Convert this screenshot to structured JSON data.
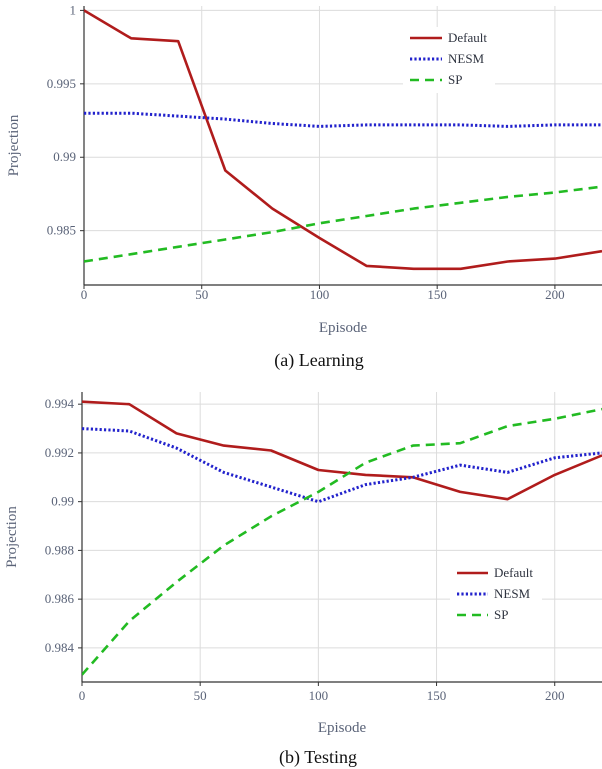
{
  "chart_data": [
    {
      "type": "line",
      "caption": "(a) Learning",
      "xlabel": "Episode",
      "ylabel": "Projection",
      "xlim": [
        0,
        220
      ],
      "ylim": [
        0.9813,
        1.0003
      ],
      "xticks": [
        0,
        50,
        100,
        150,
        200
      ],
      "yticks": [
        0.985,
        0.99,
        0.995,
        1
      ],
      "ytick_labels": [
        "0.985",
        "0.99",
        "0.995",
        "1"
      ],
      "grid": true,
      "legend_position": "top-right",
      "x": [
        0,
        20,
        40,
        60,
        80,
        100,
        120,
        140,
        160,
        180,
        200,
        220
      ],
      "series": [
        {
          "name": "Default",
          "color": "#b01c1c",
          "style": "solid",
          "values": [
            1.0,
            0.9981,
            0.9979,
            0.9891,
            0.9865,
            0.9845,
            0.9826,
            0.9824,
            0.9824,
            0.9829,
            0.9831,
            0.9836
          ]
        },
        {
          "name": "NESM",
          "color": "#2222cc",
          "style": "dotted",
          "values": [
            0.993,
            0.993,
            0.9928,
            0.9926,
            0.9923,
            0.9921,
            0.9922,
            0.9922,
            0.9922,
            0.9921,
            0.9922,
            0.9922
          ]
        },
        {
          "name": "SP",
          "color": "#22bb22",
          "style": "dashed",
          "values": [
            0.9829,
            0.9834,
            0.9839,
            0.9844,
            0.9849,
            0.9855,
            0.986,
            0.9865,
            0.9869,
            0.9873,
            0.9876,
            0.988
          ]
        }
      ]
    },
    {
      "type": "line",
      "caption": "(b) Testing",
      "xlabel": "Episode",
      "ylabel": "Projection",
      "xlim": [
        0,
        220
      ],
      "ylim": [
        0.9826,
        0.9945
      ],
      "xticks": [
        0,
        50,
        100,
        150,
        200
      ],
      "yticks": [
        0.984,
        0.986,
        0.988,
        0.99,
        0.992,
        0.994
      ],
      "ytick_labels": [
        "0.984",
        "0.986",
        "0.988",
        "0.99",
        "0.992",
        "0.994"
      ],
      "grid": true,
      "legend_position": "lower-right",
      "x": [
        0,
        20,
        40,
        60,
        80,
        100,
        120,
        140,
        160,
        180,
        200,
        220
      ],
      "series": [
        {
          "name": "Default",
          "color": "#b01c1c",
          "style": "solid",
          "values": [
            0.9941,
            0.994,
            0.9928,
            0.9923,
            0.9921,
            0.9913,
            0.9911,
            0.991,
            0.9904,
            0.9901,
            0.9911,
            0.9919
          ]
        },
        {
          "name": "NESM",
          "color": "#2222cc",
          "style": "dotted",
          "values": [
            0.993,
            0.9929,
            0.9922,
            0.9912,
            0.9906,
            0.99,
            0.9907,
            0.991,
            0.9915,
            0.9912,
            0.9918,
            0.992
          ]
        },
        {
          "name": "SP",
          "color": "#22bb22",
          "style": "dashed",
          "values": [
            0.9829,
            0.9851,
            0.9867,
            0.9882,
            0.9894,
            0.9904,
            0.9916,
            0.9923,
            0.9924,
            0.9931,
            0.9934,
            0.9938
          ]
        }
      ]
    }
  ]
}
